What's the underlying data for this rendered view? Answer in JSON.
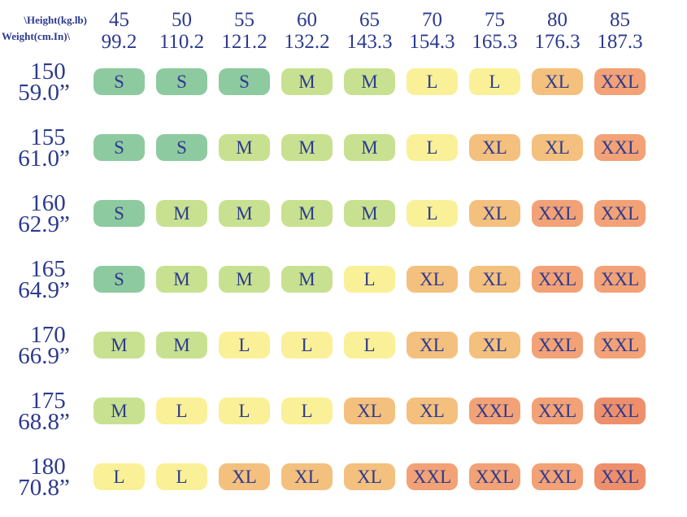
{
  "colors": {
    "text_navy": "#2c3a8e",
    "background": "#ffffff"
  },
  "chart_data": {
    "type": "table",
    "subtype": "heatmap-size-chart",
    "corner_top": "\\Height(kg.lb)",
    "corner_bottom": "Weight(cm.In)\\",
    "columns_kg": [
      "45",
      "50",
      "55",
      "60",
      "65",
      "70",
      "75",
      "80",
      "85"
    ],
    "columns_lb": [
      "99.2",
      "110.2",
      "121.2",
      "132.2",
      "143.3",
      "154.3",
      "165.3",
      "176.3",
      "187.3"
    ],
    "rows_cm": [
      "150",
      "155",
      "160",
      "165",
      "170",
      "175",
      "180"
    ],
    "rows_in": [
      "59.0”",
      "61.0”",
      "62.9”",
      "64.9”",
      "66.9”",
      "68.8”",
      "70.8”"
    ],
    "sizes": [
      [
        "S",
        "S",
        "S",
        "M",
        "M",
        "L",
        "L",
        "XL",
        "XXL"
      ],
      [
        "S",
        "S",
        "M",
        "M",
        "M",
        "L",
        "XL",
        "XL",
        "XXL"
      ],
      [
        "S",
        "M",
        "M",
        "M",
        "M",
        "L",
        "XL",
        "XXL",
        "XXL"
      ],
      [
        "S",
        "M",
        "M",
        "M",
        "L",
        "XL",
        "XL",
        "XXL",
        "XXL"
      ],
      [
        "M",
        "M",
        "L",
        "L",
        "L",
        "XL",
        "XL",
        "XXL",
        "XXL"
      ],
      [
        "M",
        "L",
        "L",
        "L",
        "XL",
        "XL",
        "XXL",
        "XXL",
        "XXL"
      ],
      [
        "L",
        "L",
        "XL",
        "XL",
        "XL",
        "XXL",
        "XXL",
        "XXL",
        "XXL"
      ]
    ],
    "palette": {
      "S": "#8ecaa0",
      "M": "#c8e190",
      "L": "#faf098",
      "XL": "#f4c07e",
      "XXL": "#f2a276"
    },
    "color_overrides": [
      {
        "row": 5,
        "col": 8,
        "color": "#ee8f6c"
      },
      {
        "row": 6,
        "col": 8,
        "color": "#ee8f6c"
      }
    ],
    "legend": "none",
    "grid_lines": "off"
  }
}
